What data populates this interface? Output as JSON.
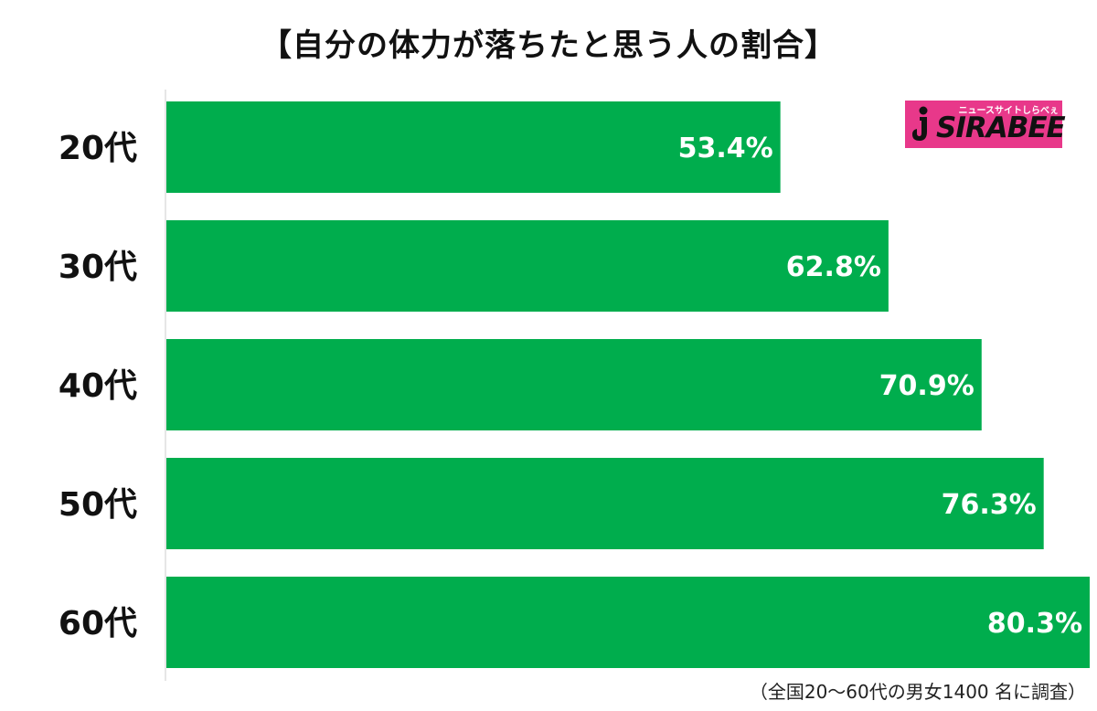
{
  "chart_data": {
    "type": "bar",
    "orientation": "horizontal",
    "title": "【自分の体力が落ちたと思う人の割合】",
    "categories": [
      "20代",
      "30代",
      "40代",
      "50代",
      "60代"
    ],
    "values": [
      53.4,
      62.8,
      70.9,
      76.3,
      80.3
    ],
    "value_labels": [
      "53.4%",
      "62.8%",
      "70.9%",
      "76.3%",
      "80.3%"
    ],
    "unit": "%",
    "xlim": [
      0,
      85
    ],
    "grid": false,
    "legend": "none",
    "bar_color": "#00ad4d",
    "footnote": "（全国20～60代の男女1400 名に調査）"
  },
  "logo": {
    "tagline": "ニュースサイトしらべぇ",
    "text": "SIRABEE",
    "color": "#e8388a"
  }
}
